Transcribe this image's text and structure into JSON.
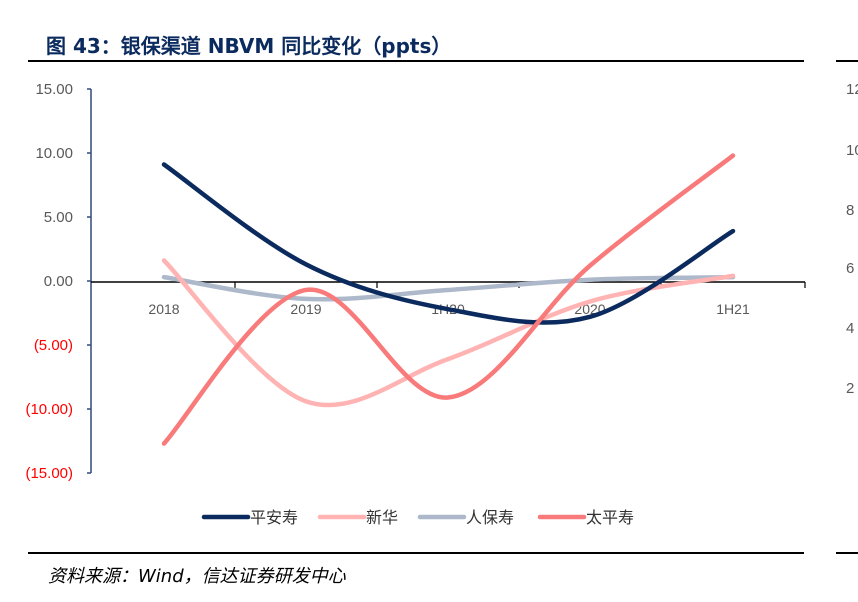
{
  "title": "图 43：银保渠道 NBVM 同比变化（ppts）",
  "source": "资料来源：Wind，信达证券研发中心",
  "right_chart_partial_ticks": [
    "12",
    "10",
    "8",
    "6",
    "4",
    "2"
  ],
  "chart_data": {
    "type": "line",
    "smooth": true,
    "categories": [
      "2018",
      "2019",
      "1H20",
      "2020",
      "1H21"
    ],
    "ylim": [
      -15,
      15
    ],
    "ytick_labels": [
      "15.00",
      "10.00",
      "5.00",
      "0.00",
      "(5.00)",
      "(10.00)",
      "(15.00)"
    ],
    "yticks": [
      15,
      10,
      5,
      0,
      -5,
      -10,
      -15
    ],
    "negative_label_color": "#ff0000",
    "positive_label_color": "#595959",
    "grid": false,
    "legend_position": "bottom",
    "series": [
      {
        "name": "平安寿",
        "color": "#0b2a5e",
        "values": [
          9.1,
          1.3,
          -2.2,
          -2.8,
          3.9
        ]
      },
      {
        "name": "新华",
        "color": "#ffb3b3",
        "values": [
          1.6,
          -9.4,
          -6.1,
          -1.6,
          0.4
        ]
      },
      {
        "name": "人保寿",
        "color": "#adb9ca",
        "values": [
          0.3,
          -1.4,
          -0.7,
          0.1,
          0.3
        ]
      },
      {
        "name": "太平寿",
        "color": "#f87a7a",
        "values": [
          -12.7,
          -0.7,
          -9.1,
          1.2,
          9.8
        ]
      }
    ]
  }
}
